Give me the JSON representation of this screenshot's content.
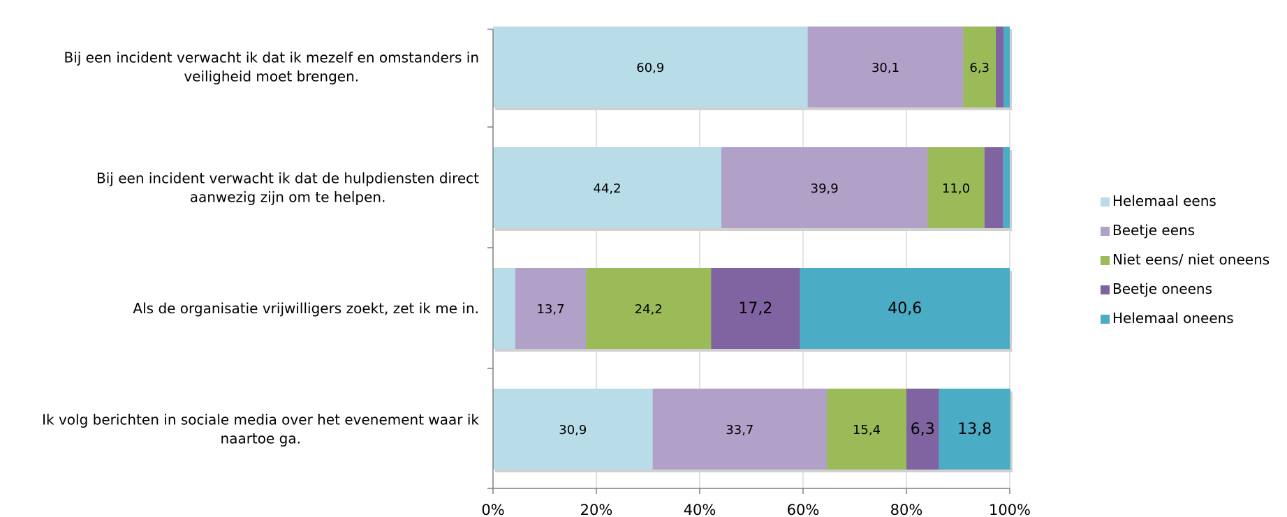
{
  "chart_data": {
    "type": "bar",
    "orientation": "horizontal",
    "stacked": "percent",
    "categories": [
      [
        "Bij een incident verwacht ik dat ik mezelf en omstanders in",
        "veiligheid moet brengen."
      ],
      [
        "Bij een incident verwacht ik dat de hulpdiensten direct",
        "aanwezig zijn om te helpen."
      ],
      [
        "Als de organisatie vrijwilligers zoekt, zet ik me in."
      ],
      [
        "Ik volg berichten in sociale media over het evenement waar ik",
        "naartoe ga."
      ]
    ],
    "series": [
      {
        "name": "Helemaal eens",
        "color": "#b8dde8",
        "values": [
          60.9,
          44.2,
          4.3,
          30.9
        ],
        "labels": [
          "60,9",
          "44,2",
          "",
          "30,9"
        ]
      },
      {
        "name": "Beetje eens",
        "color": "#b1a0c7",
        "values": [
          30.1,
          39.9,
          13.7,
          33.7
        ],
        "labels": [
          "30,1",
          "39,9",
          "13,7",
          "33,7"
        ]
      },
      {
        "name": "Niet eens/ niet oneens",
        "color": "#9bbb59",
        "values": [
          6.3,
          11.0,
          24.2,
          15.4
        ],
        "labels": [
          "6,3",
          "11,0",
          "24,2",
          "15,4"
        ]
      },
      {
        "name": "Beetje oneens",
        "color": "#8064a2",
        "values": [
          1.5,
          3.6,
          17.2,
          6.3
        ],
        "labels": [
          "",
          "",
          "17,2",
          "6,3"
        ]
      },
      {
        "name": "Helemaal oneens",
        "color": "#4bacc6",
        "values": [
          1.2,
          1.3,
          40.6,
          13.8
        ],
        "labels": [
          "",
          "",
          "40,6",
          "13,8"
        ]
      }
    ],
    "xlim": [
      0,
      100
    ],
    "x_ticks": [
      "0%",
      "20%",
      "40%",
      "60%",
      "80%",
      "100%"
    ],
    "grid": "vertical",
    "legend": "right"
  }
}
